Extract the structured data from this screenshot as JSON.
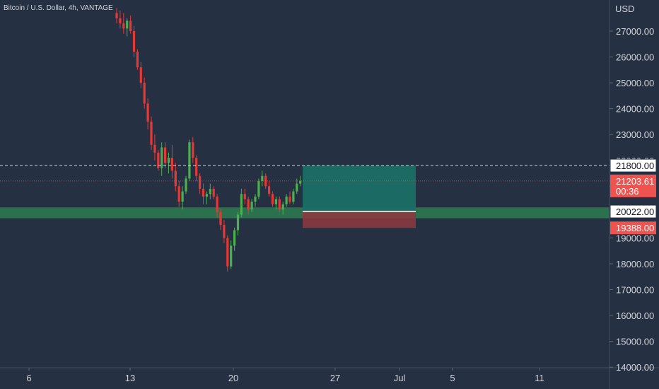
{
  "chart_data": {
    "type": "candlestick",
    "title": "Bitcoin / U.S. Dollar, 4h, VANTAGE",
    "currency_label": "USD",
    "y_ticks": [
      14000,
      15000,
      16000,
      17000,
      18000,
      19000,
      20000,
      21000,
      22000,
      23000,
      24000,
      25000,
      26000,
      27000
    ],
    "y_tick_labels": [
      "14000.00",
      "15000.00",
      "16000.00",
      "17000.00",
      "18000.00",
      "19000.00",
      "20000.00",
      "21000.00",
      "22000.00",
      "23000.00",
      "24000.00",
      "25000.00",
      "26000.00",
      "27000.00"
    ],
    "x_ticks": [
      "6",
      "13",
      "20",
      "27",
      "Jul",
      "5",
      "11"
    ],
    "colors": {
      "up": "#26a69a",
      "down": "#ef5350",
      "candle_up": "#4caf50",
      "candle_down": "#e53935",
      "zone": "#2e7d4f",
      "target": "#1a6e66",
      "stop": "#8a3a3f"
    },
    "support_zone": [
      19760,
      20180
    ],
    "last_price": 21203.61,
    "last_price_label": "21203.61",
    "countdown": "00:36",
    "position": {
      "entry": 20022,
      "entry_label": "20022.00",
      "target": 21800,
      "target_label": "21800.00",
      "stop": 19388,
      "stop_label": "19388.00"
    },
    "candles": [
      [
        27700,
        27900,
        27300,
        27500
      ],
      [
        27500,
        27800,
        27100,
        27300
      ],
      [
        27300,
        27700,
        26900,
        27100
      ],
      [
        27100,
        27500,
        26800,
        27400
      ],
      [
        27400,
        27600,
        26900,
        27000
      ],
      [
        27000,
        27200,
        26000,
        26200
      ],
      [
        26200,
        26300,
        25500,
        25600
      ],
      [
        25600,
        25800,
        24800,
        25000
      ],
      [
        25000,
        25200,
        24000,
        24200
      ],
      [
        24200,
        24400,
        23200,
        23500
      ],
      [
        23500,
        23700,
        22400,
        22600
      ],
      [
        22600,
        23000,
        22000,
        22300
      ],
      [
        22300,
        22400,
        21600,
        21700
      ],
      [
        21700,
        22700,
        21400,
        22500
      ],
      [
        22500,
        22700,
        21700,
        21900
      ],
      [
        21900,
        22300,
        21500,
        22100
      ],
      [
        22100,
        22600,
        21300,
        21600
      ],
      [
        21600,
        21900,
        20800,
        21000
      ],
      [
        21000,
        21200,
        20200,
        20400
      ],
      [
        20400,
        21000,
        20100,
        20800
      ],
      [
        20800,
        21400,
        20700,
        21300
      ],
      [
        21300,
        22800,
        21200,
        22700
      ],
      [
        22700,
        22900,
        21900,
        22100
      ],
      [
        22100,
        22200,
        21200,
        21400
      ],
      [
        21400,
        21500,
        20700,
        20900
      ],
      [
        20900,
        21100,
        20300,
        20600
      ],
      [
        20600,
        20800,
        20300,
        20700
      ],
      [
        20700,
        21100,
        20500,
        20900
      ],
      [
        20900,
        21000,
        20500,
        20600
      ],
      [
        20600,
        20700,
        19800,
        20000
      ],
      [
        20000,
        20100,
        19300,
        19500
      ],
      [
        19500,
        19700,
        18800,
        19000
      ],
      [
        19000,
        19100,
        17700,
        17900
      ],
      [
        17900,
        18900,
        17800,
        18700
      ],
      [
        18700,
        19400,
        18500,
        19300
      ],
      [
        19300,
        20000,
        19100,
        19900
      ],
      [
        19900,
        20900,
        19800,
        20700
      ],
      [
        20700,
        20900,
        20300,
        20500
      ],
      [
        20500,
        20600,
        19900,
        20100
      ],
      [
        20100,
        20500,
        20000,
        20400
      ],
      [
        20400,
        20700,
        20200,
        20600
      ],
      [
        20600,
        21300,
        20500,
        21200
      ],
      [
        21200,
        21600,
        21000,
        21400
      ],
      [
        21400,
        21500,
        20900,
        21000
      ],
      [
        21000,
        21200,
        20600,
        20700
      ],
      [
        20700,
        20800,
        20200,
        20300
      ],
      [
        20300,
        20600,
        20100,
        20500
      ],
      [
        20500,
        20600,
        20000,
        20100
      ],
      [
        20100,
        20400,
        19900,
        20300
      ],
      [
        20300,
        20700,
        20200,
        20600
      ],
      [
        20600,
        20800,
        20300,
        20400
      ],
      [
        20400,
        20900,
        20300,
        20800
      ],
      [
        20800,
        21300,
        20700,
        21100
      ],
      [
        21100,
        21400,
        21000,
        21203.61
      ]
    ]
  }
}
